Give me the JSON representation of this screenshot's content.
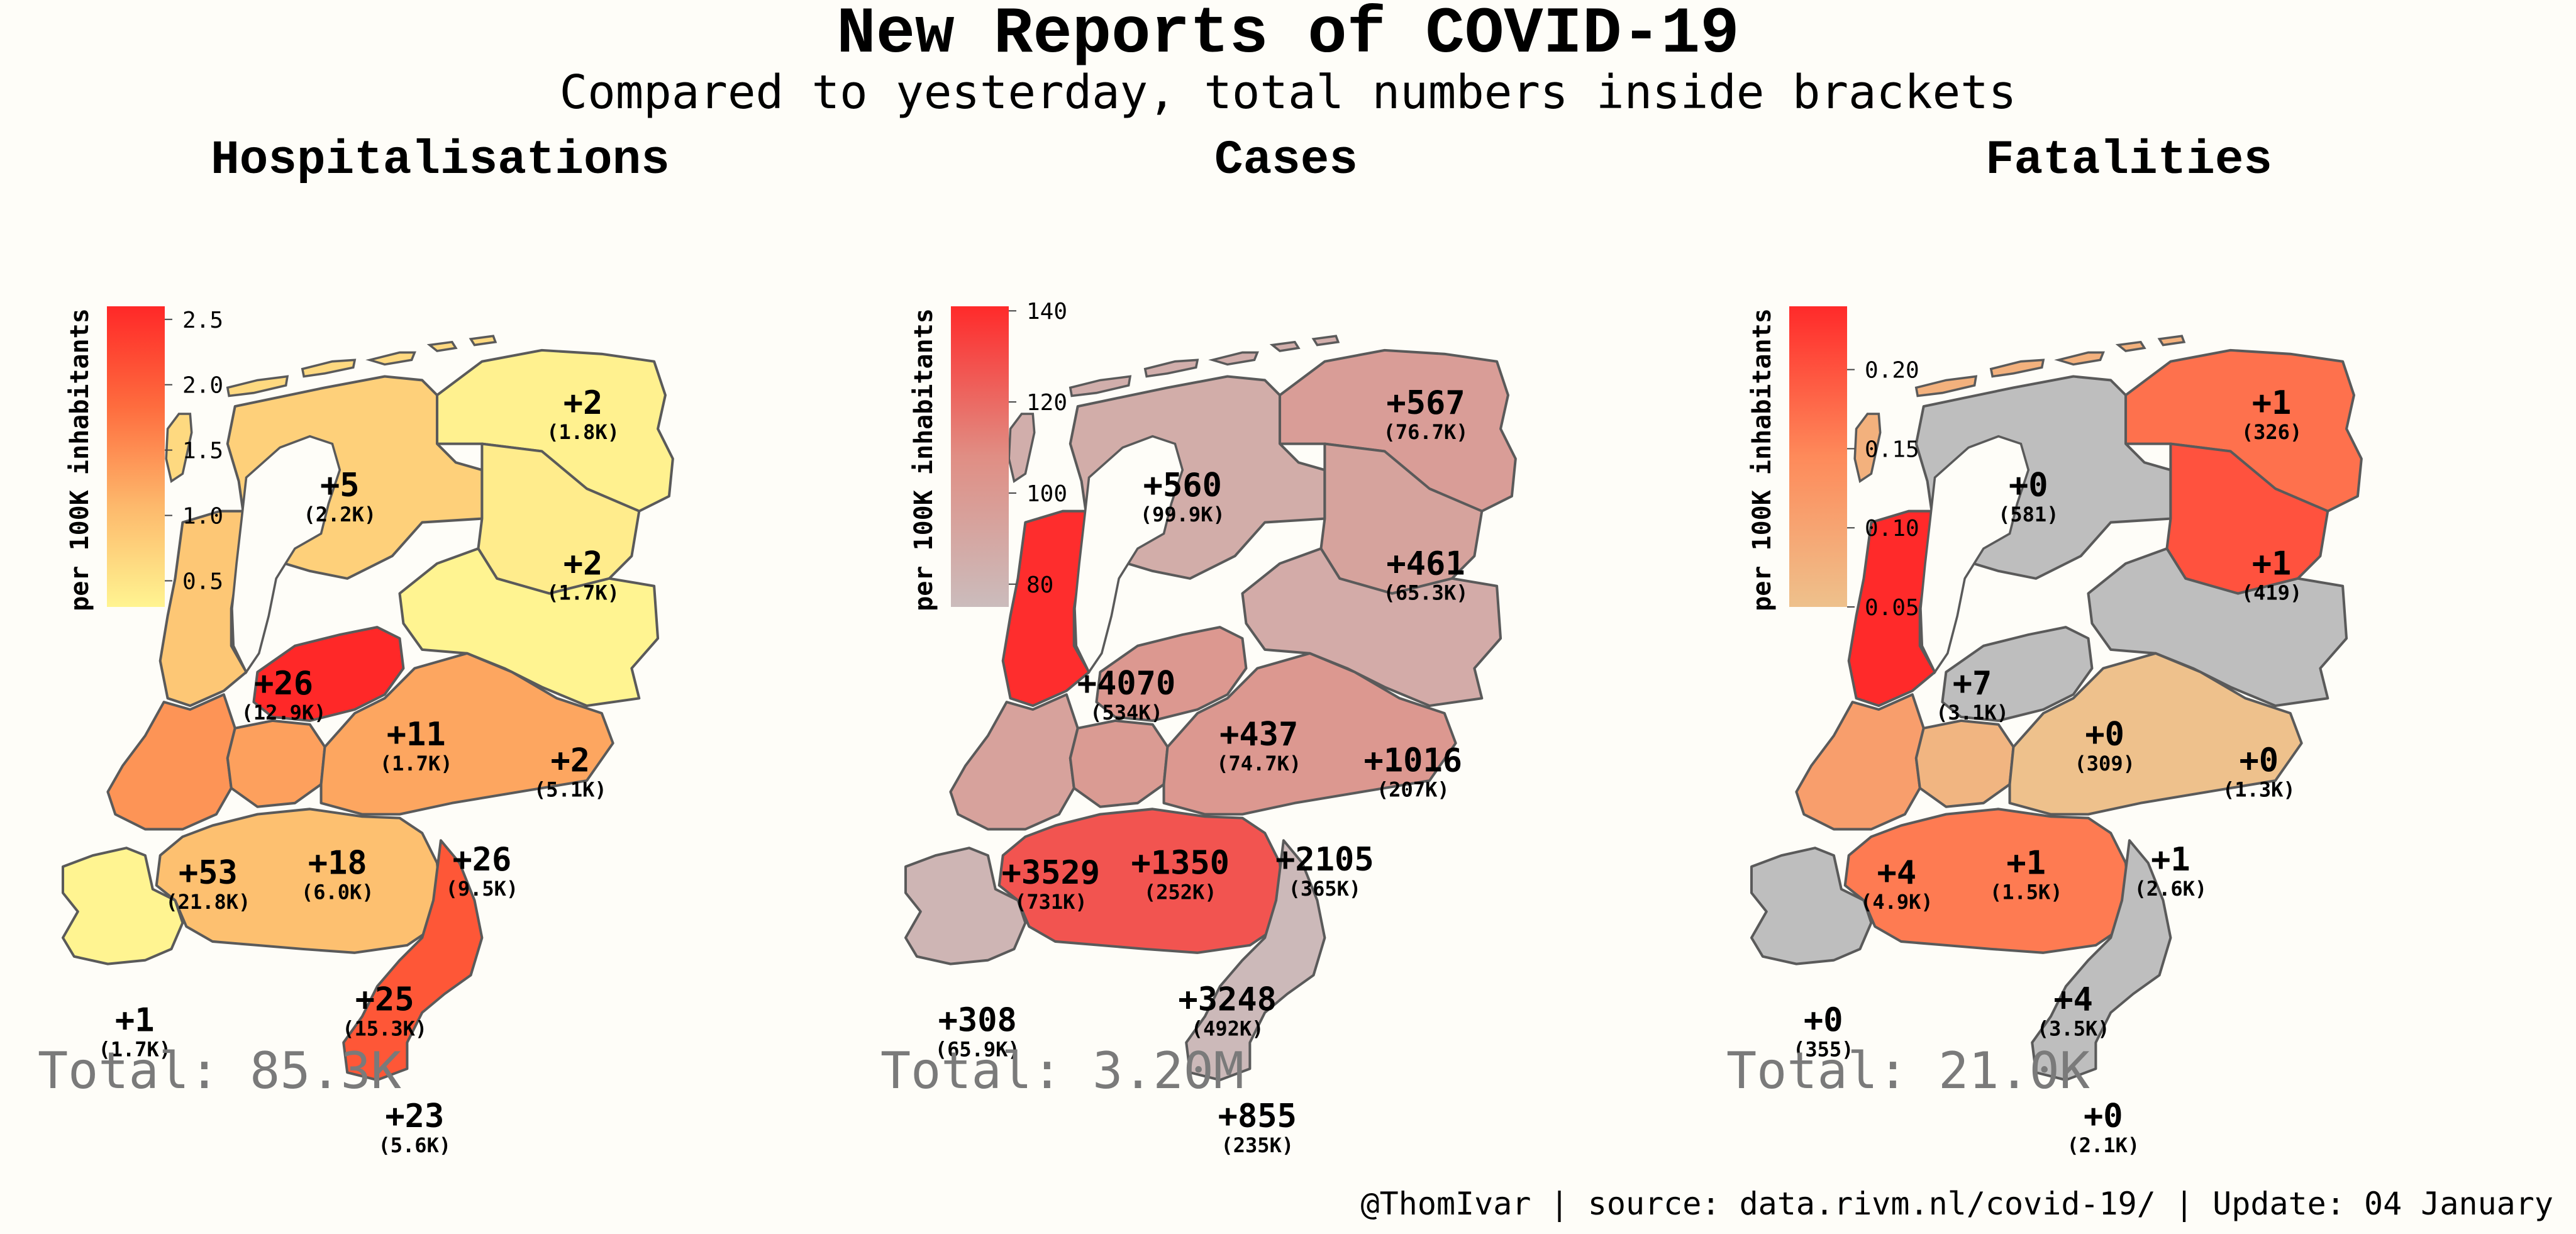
{
  "title": "New Reports of COVID-19",
  "subtitle": "Compared to yesterday, total numbers inside brackets",
  "footer": "@ThomIvar | source: data.rivm.nl/covid-19/ | Update: 04 January",
  "colors": {
    "background": "#fefdf8",
    "no_data": "#bebebe",
    "border": "#5a5a5a",
    "total_text": "#7a7a7a"
  },
  "chart_data": [
    {
      "type": "choropleth",
      "title": "Hospitalisations",
      "legend_label": "per 100K inhabitants",
      "legend_ticks": [
        "0.5",
        "1.0",
        "1.5",
        "2.0",
        "2.5"
      ],
      "legend_tick_values": [
        0.5,
        1.0,
        1.5,
        2.0,
        2.5
      ],
      "scale": {
        "min": 0.3,
        "max": 2.6,
        "colors": [
          "#fff491",
          "#fdb96c",
          "#fe6c3e",
          "#ff2828"
        ]
      },
      "total": "Total: 85.3K",
      "regions": [
        {
          "province": "Groningen",
          "change": "+2",
          "total": "(1.8K)",
          "per_100k": 0.34
        },
        {
          "province": "Friesland",
          "change": "+5",
          "total": "(2.2K)",
          "per_100k": 0.77
        },
        {
          "province": "Drenthe",
          "change": "+2",
          "total": "(1.7K)",
          "per_100k": 0.4
        },
        {
          "province": "Noord-Holland",
          "change": "+26",
          "total": "(12.9K)",
          "per_100k": 0.88
        },
        {
          "province": "Flevoland",
          "change": "+11",
          "total": "(1.7K)",
          "per_100k": 2.6
        },
        {
          "province": "Overijssel",
          "change": "+2",
          "total": "(5.1K)",
          "per_100k": 0.17
        },
        {
          "province": "Zuid-Holland",
          "change": "+53",
          "total": "(21.8K)",
          "per_100k": 1.44
        },
        {
          "province": "Utrecht",
          "change": "+18",
          "total": "(6.0K)",
          "per_100k": 1.32
        },
        {
          "province": "Gelderland",
          "change": "+26",
          "total": "(9.5K)",
          "per_100k": 1.26
        },
        {
          "province": "Zeeland",
          "change": "+1",
          "total": "(1.7K)",
          "per_100k": 0.26
        },
        {
          "province": "Noord-Brabant",
          "change": "+25",
          "total": "(15.3K)",
          "per_100k": 0.98
        },
        {
          "province": "Limburg",
          "change": "+23",
          "total": "(5.6K)",
          "per_100k": 2.07
        }
      ]
    },
    {
      "type": "choropleth",
      "title": "Cases",
      "legend_label": "per 100K inhabitants",
      "legend_ticks": [
        "80",
        "100",
        "120",
        "140"
      ],
      "legend_tick_values": [
        80,
        100,
        120,
        140
      ],
      "scale": {
        "min": 75,
        "max": 141,
        "colors": [
          "#cbbcbc",
          "#e08e84",
          "#ff2a2a"
        ]
      },
      "total": "Total: 3.20M",
      "regions": [
        {
          "province": "Groningen",
          "change": "+567",
          "total": "(76.7K)",
          "per_100k": 97
        },
        {
          "province": "Friesland",
          "change": "+560",
          "total": "(99.9K)",
          "per_100k": 86
        },
        {
          "province": "Drenthe",
          "change": "+461",
          "total": "(65.3K)",
          "per_100k": 93
        },
        {
          "province": "Noord-Holland",
          "change": "+4070",
          "total": "(534K)",
          "per_100k": 140
        },
        {
          "province": "Flevoland",
          "change": "+437",
          "total": "(74.7K)",
          "per_100k": 101
        },
        {
          "province": "Overijssel",
          "change": "+1016",
          "total": "(207K)",
          "per_100k": 87
        },
        {
          "province": "Zuid-Holland",
          "change": "+3529",
          "total": "(731K)",
          "per_100k": 94
        },
        {
          "province": "Utrecht",
          "change": "+1350",
          "total": "(252K)",
          "per_100k": 99
        },
        {
          "province": "Gelderland",
          "change": "+2105",
          "total": "(365K)",
          "per_100k": 101
        },
        {
          "province": "Zeeland",
          "change": "+308",
          "total": "(65.9K)",
          "per_100k": 80
        },
        {
          "province": "Noord-Brabant",
          "change": "+3248",
          "total": "(492K)",
          "per_100k": 127
        },
        {
          "province": "Limburg",
          "change": "+855",
          "total": "(235K)",
          "per_100k": 77
        }
      ]
    },
    {
      "type": "choropleth",
      "title": "Fatalities",
      "legend_label": "per 100K inhabitants",
      "legend_ticks": [
        "0.05",
        "0.10",
        "0.15",
        "0.20"
      ],
      "legend_tick_values": [
        0.05,
        0.1,
        0.15,
        0.2
      ],
      "scale": {
        "min": 0.05,
        "max": 0.24,
        "colors": [
          "#eec18c",
          "#fe8a5a",
          "#ff2a2a"
        ]
      },
      "total": "Total: 21.0K",
      "regions": [
        {
          "province": "Groningen",
          "change": "+1",
          "total": "(326)",
          "per_100k": 0.17
        },
        {
          "province": "Friesland",
          "change": "+0",
          "total": "(581)",
          "per_100k": null
        },
        {
          "province": "Drenthe",
          "change": "+1",
          "total": "(419)",
          "per_100k": 0.2
        },
        {
          "province": "Noord-Holland",
          "change": "+7",
          "total": "(3.1K)",
          "per_100k": 0.24
        },
        {
          "province": "Flevoland",
          "change": "+0",
          "total": "(309)",
          "per_100k": null
        },
        {
          "province": "Overijssel",
          "change": "+0",
          "total": "(1.3K)",
          "per_100k": null
        },
        {
          "province": "Zuid-Holland",
          "change": "+4",
          "total": "(4.9K)",
          "per_100k": 0.11
        },
        {
          "province": "Utrecht",
          "change": "+1",
          "total": "(1.5K)",
          "per_100k": 0.07
        },
        {
          "province": "Gelderland",
          "change": "+1",
          "total": "(2.6K)",
          "per_100k": 0.05
        },
        {
          "province": "Zeeland",
          "change": "+0",
          "total": "(355)",
          "per_100k": null
        },
        {
          "province": "Noord-Brabant",
          "change": "+4",
          "total": "(3.5K)",
          "per_100k": 0.16
        },
        {
          "province": "Limburg",
          "change": "+0",
          "total": "(2.1K)",
          "per_100k": null
        }
      ]
    }
  ]
}
